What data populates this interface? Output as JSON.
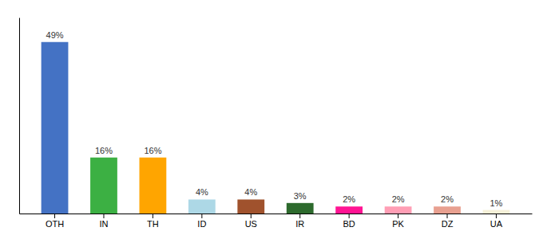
{
  "chart_data": {
    "type": "bar",
    "categories": [
      "OTH",
      "IN",
      "TH",
      "ID",
      "US",
      "IR",
      "BD",
      "PK",
      "DZ",
      "UA"
    ],
    "values": [
      49,
      16,
      16,
      4,
      4,
      3,
      2,
      2,
      2,
      1
    ],
    "value_labels": [
      "49%",
      "16%",
      "16%",
      "4%",
      "4%",
      "3%",
      "2%",
      "2%",
      "2%",
      "1%"
    ],
    "colors": [
      "#4472c4",
      "#3cb043",
      "#ffa500",
      "#add8e6",
      "#a0522d",
      "#2d6a2d",
      "#ff1493",
      "#ff9eb5",
      "#e8a090",
      "#f5f0d8"
    ],
    "ylim": [
      0,
      56
    ],
    "data_labels": true,
    "tick_labels": "x"
  }
}
